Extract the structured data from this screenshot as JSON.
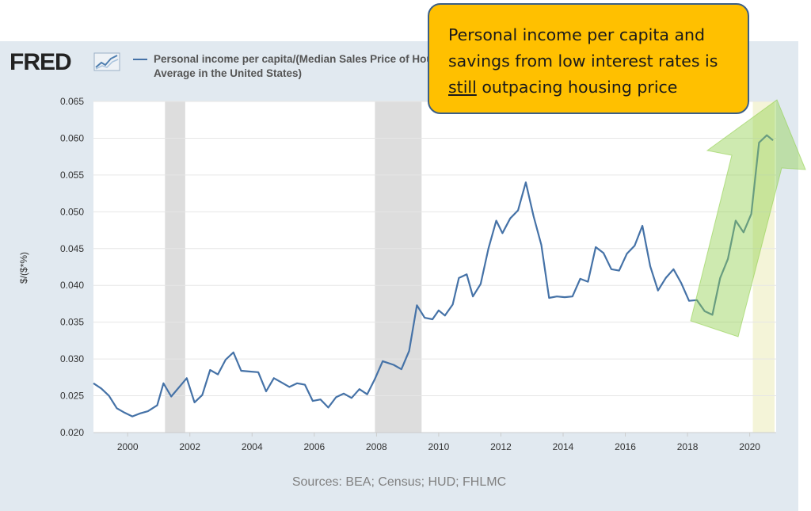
{
  "brand": {
    "logo_text": "FRED",
    "logo_icon": "trend-chart-icon"
  },
  "legend": {
    "text": "Personal income per capita/(Median Sales Price of Houses Sold for the United States*30-Year Fixed Rate Mortgage Average in the United States)",
    "color": "#4572a7"
  },
  "annotation": {
    "line1": "Personal income per capita and",
    "line2": "savings from low interest rates is",
    "line3_underlined": "still",
    "line3_rest": " outpacing housing price",
    "background": "#ffc000",
    "arrow_color": "#92d050"
  },
  "footer": {
    "sources": "Sources: BEA; Census; HUD; FHLMC"
  },
  "chart_data": {
    "type": "line",
    "title": "",
    "xlabel": "",
    "ylabel": "$/($*%)",
    "ylim": [
      0.02,
      0.065
    ],
    "xlim": [
      1998.9,
      2020.85
    ],
    "y_ticks": [
      "0.020",
      "0.025",
      "0.030",
      "0.035",
      "0.040",
      "0.045",
      "0.050",
      "0.055",
      "0.060",
      "0.065"
    ],
    "x_ticks": [
      "2000",
      "2002",
      "2004",
      "2006",
      "2008",
      "2010",
      "2012",
      "2014",
      "2016",
      "2018",
      "2020"
    ],
    "grid": true,
    "recession_bands": [
      [
        2001.2,
        2001.85
      ],
      [
        2007.95,
        2009.45
      ],
      [
        2020.1,
        2020.8
      ]
    ],
    "recession_colors": [
      "#dddddd",
      "#dddddd",
      "#f4f4d8"
    ],
    "series": [
      {
        "name": "Personal income per capita/(Median Sales Price of Houses Sold for the United States*30-Year Fixed Rate Mortgage Average in the United States)",
        "color": "#4572a7",
        "x": [
          1998.9,
          1999.15,
          1999.4,
          1999.65,
          1999.9,
          2000.15,
          2000.4,
          2000.65,
          2000.95,
          2001.15,
          2001.4,
          2001.7,
          2001.9,
          2002.15,
          2002.4,
          2002.65,
          2002.9,
          2003.15,
          2003.4,
          2003.65,
          2003.9,
          2004.2,
          2004.45,
          2004.7,
          2004.95,
          2005.2,
          2005.45,
          2005.7,
          2005.95,
          2006.2,
          2006.45,
          2006.7,
          2006.95,
          2007.2,
          2007.45,
          2007.7,
          2007.95,
          2008.2,
          2008.55,
          2008.8,
          2009.05,
          2009.3,
          2009.55,
          2009.8,
          2010.0,
          2010.2,
          2010.45,
          2010.65,
          2010.9,
          2011.1,
          2011.35,
          2011.6,
          2011.85,
          2012.05,
          2012.3,
          2012.55,
          2012.8,
          2013.05,
          2013.3,
          2013.55,
          2013.8,
          2014.05,
          2014.3,
          2014.55,
          2014.8,
          2015.05,
          2015.3,
          2015.55,
          2015.8,
          2016.05,
          2016.3,
          2016.55,
          2016.8,
          2017.05,
          2017.3,
          2017.55,
          2017.8,
          2018.05,
          2018.3,
          2018.55,
          2018.8,
          2019.05,
          2019.3,
          2019.55,
          2019.8,
          2020.05,
          2020.3,
          2020.55,
          2020.75
        ],
        "y": [
          0.0267,
          0.026,
          0.025,
          0.0233,
          0.0227,
          0.0222,
          0.0226,
          0.0229,
          0.0237,
          0.0267,
          0.0249,
          0.0264,
          0.0274,
          0.0241,
          0.0251,
          0.0285,
          0.0279,
          0.0299,
          0.0309,
          0.0284,
          0.0283,
          0.0282,
          0.0256,
          0.0274,
          0.0268,
          0.0262,
          0.0267,
          0.0265,
          0.0243,
          0.0245,
          0.0234,
          0.0248,
          0.0253,
          0.0247,
          0.0259,
          0.0252,
          0.0273,
          0.0297,
          0.0292,
          0.0286,
          0.0311,
          0.0373,
          0.0356,
          0.0354,
          0.0366,
          0.0359,
          0.0374,
          0.041,
          0.0415,
          0.0385,
          0.0402,
          0.045,
          0.0488,
          0.0471,
          0.0491,
          0.0502,
          0.054,
          0.0494,
          0.0455,
          0.0383,
          0.0385,
          0.0384,
          0.0385,
          0.0409,
          0.0405,
          0.0452,
          0.0444,
          0.0422,
          0.042,
          0.0443,
          0.0454,
          0.0481,
          0.0426,
          0.0393,
          0.041,
          0.0422,
          0.0403,
          0.0379,
          0.038,
          0.0365,
          0.036,
          0.041,
          0.0436,
          0.0488,
          0.0472,
          0.0497,
          0.0594,
          0.0604,
          0.0597
        ]
      }
    ]
  }
}
